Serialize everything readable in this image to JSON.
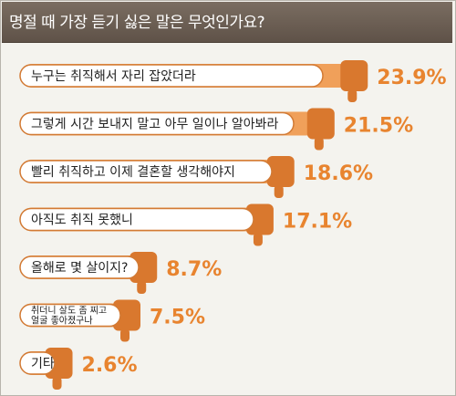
{
  "chart_data": {
    "type": "bar",
    "title": "명절 때 가장 듣기 싫은 말은 무엇인가요?",
    "categories": [
      "누구는 취직해서 자리 잡았더라",
      "그렇게 시간 보내지 말고 아무 일이나 알아봐라",
      "빨리 취직하고 이제 결혼할 생각해야지",
      "아직도 취직 못했니",
      "올해로 몇 살이지?",
      "취더니 살도 좀 찌고\n얼굴 좋아졌구나",
      "기타"
    ],
    "values": [
      23.9,
      21.5,
      18.6,
      17.1,
      8.7,
      7.5,
      2.6
    ],
    "value_labels": [
      "23.9%",
      "21.5%",
      "18.6%",
      "17.1%",
      "8.7%",
      "7.5%",
      "2.6%"
    ],
    "colors": {
      "bar": "#f0a05a",
      "bar_dark": "#d9782e",
      "label": "#e8842f",
      "pill_border": "#d27a34",
      "header": "#6b5e53"
    }
  }
}
